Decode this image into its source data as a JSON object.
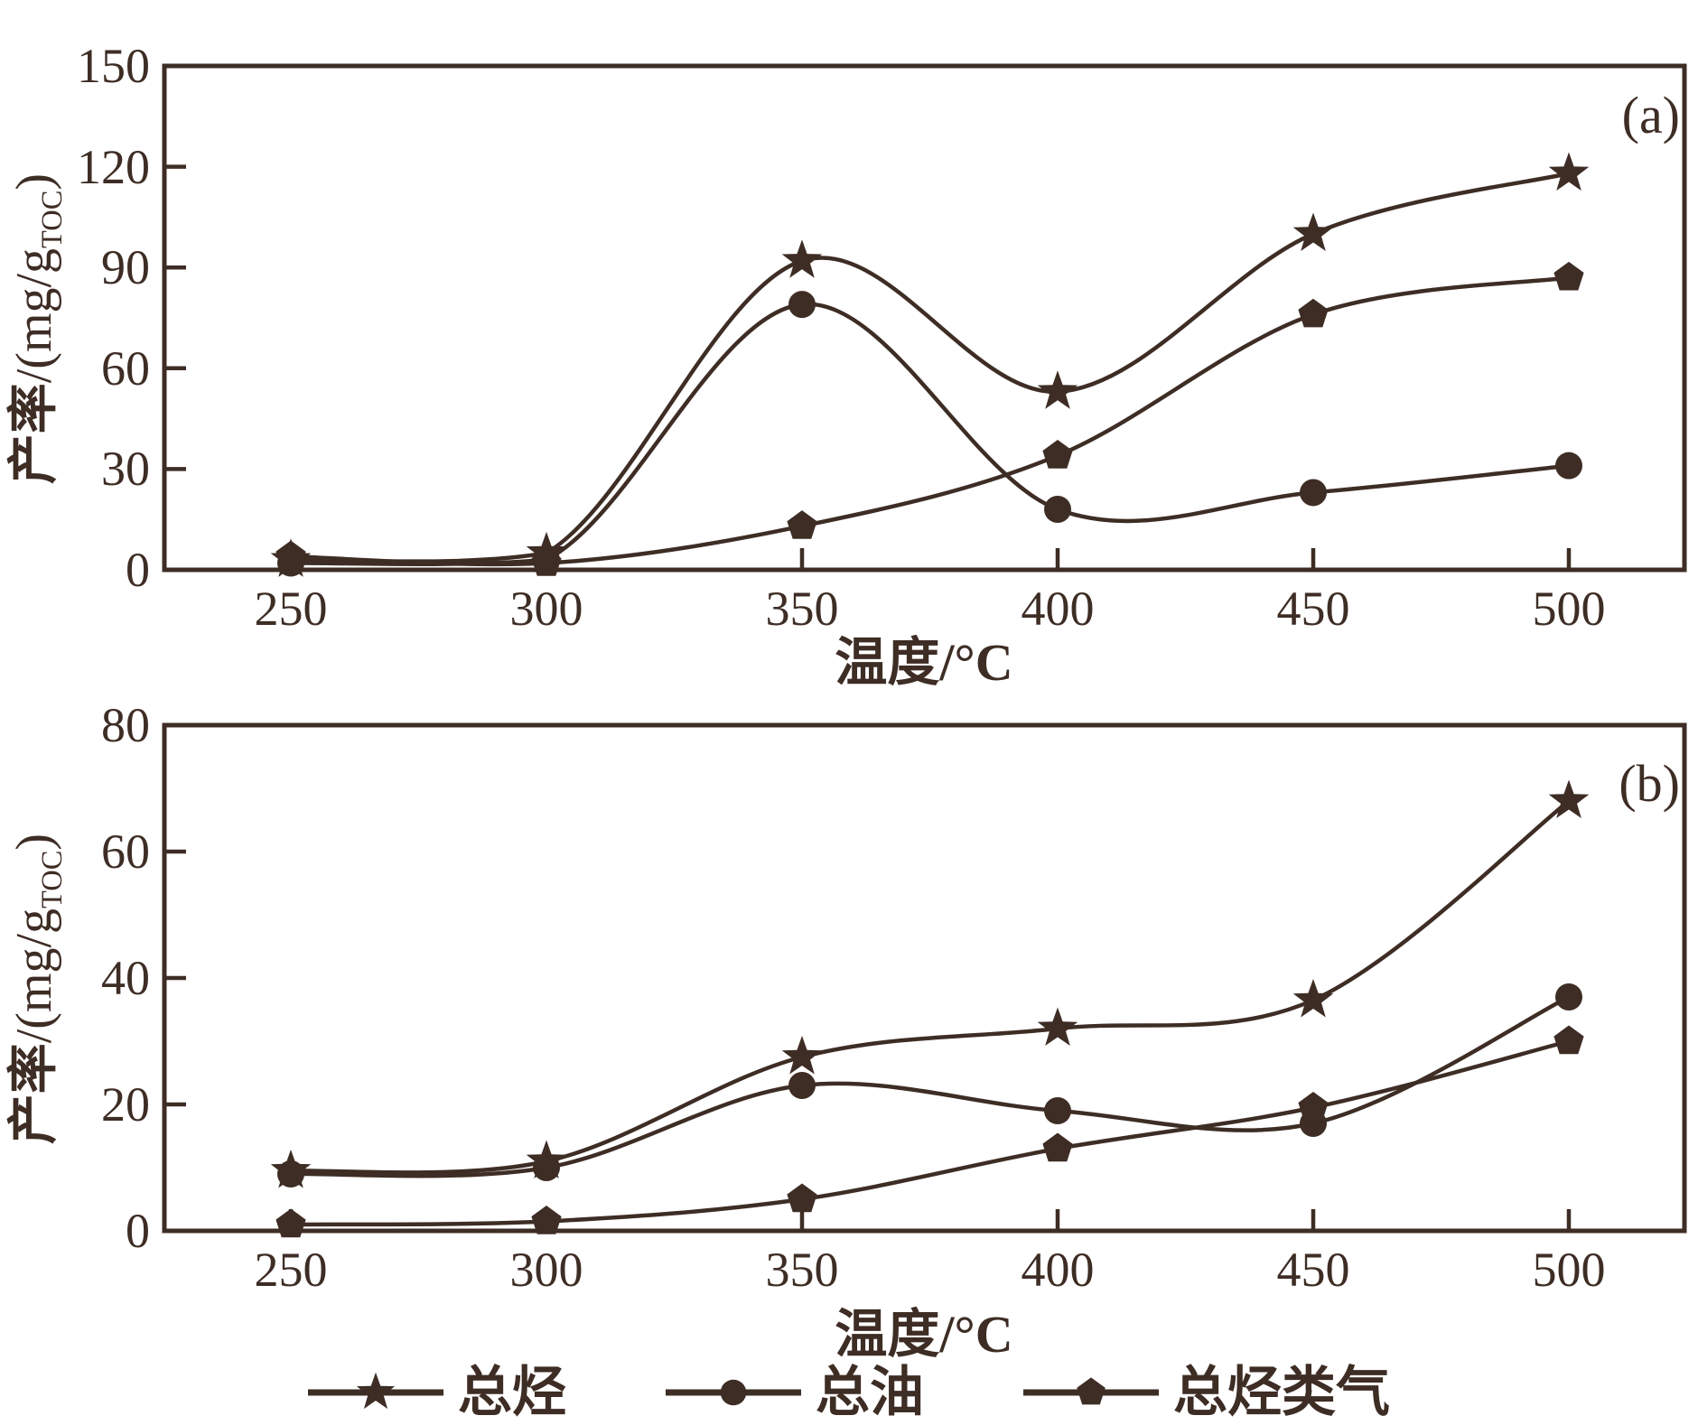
{
  "figure": {
    "ink_color": "#3E2D25",
    "background": "#FFFFFF"
  },
  "axis_labels": {
    "y_cn": "产率",
    "y_mid": "/(mg/g",
    "y_sub": "TOC",
    "y_close": ")",
    "x_label": "温度/°C"
  },
  "panel_a": {
    "tag": "(a)",
    "ytick_labels": [
      "150",
      "120",
      "90",
      "60",
      "30",
      "0"
    ],
    "xtick_labels": [
      "250",
      "300",
      "350",
      "400",
      "450",
      "500"
    ]
  },
  "panel_b": {
    "tag": "(b)",
    "ytick_labels": [
      "80",
      "60",
      "40",
      "20",
      "0"
    ],
    "xtick_labels": [
      "250",
      "300",
      "350",
      "400",
      "450",
      "500"
    ]
  },
  "legend": [
    {
      "marker": "star",
      "label": "总烃"
    },
    {
      "marker": "circle",
      "label": "总油"
    },
    {
      "marker": "pentagon",
      "label": "总烃类气"
    }
  ],
  "chart_data": [
    {
      "type": "line",
      "panel": "a",
      "title": "(a)",
      "xlabel": "温度/°C",
      "ylabel": "产率/(mg/gTOC)",
      "x": [
        250,
        300,
        350,
        400,
        450,
        500
      ],
      "ylim": [
        0,
        150
      ],
      "yticks": [
        0,
        30,
        60,
        90,
        120,
        150
      ],
      "grid": false,
      "series": [
        {
          "name": "总烃",
          "marker": "star",
          "values": [
            3,
            5,
            92,
            53,
            100,
            118
          ]
        },
        {
          "name": "总油",
          "marker": "circle",
          "values": [
            2,
            3,
            79,
            18,
            23,
            31
          ]
        },
        {
          "name": "总烃类气",
          "marker": "pentagon",
          "values": [
            4,
            2,
            13,
            34,
            76,
            87
          ]
        }
      ]
    },
    {
      "type": "line",
      "panel": "b",
      "title": "(b)",
      "xlabel": "温度/°C",
      "ylabel": "产率/(mg/gTOC)",
      "x": [
        250,
        300,
        350,
        400,
        450,
        500
      ],
      "ylim": [
        0,
        80
      ],
      "yticks": [
        0,
        20,
        40,
        60,
        80
      ],
      "grid": false,
      "series": [
        {
          "name": "总烃",
          "marker": "star",
          "values": [
            9.5,
            11,
            27.5,
            32,
            36.5,
            68
          ]
        },
        {
          "name": "总油",
          "marker": "circle",
          "values": [
            9,
            10,
            23,
            19,
            17,
            37
          ]
        },
        {
          "name": "总烃类气",
          "marker": "pentagon",
          "values": [
            1,
            1.5,
            5,
            13,
            19.5,
            30
          ]
        }
      ]
    }
  ]
}
